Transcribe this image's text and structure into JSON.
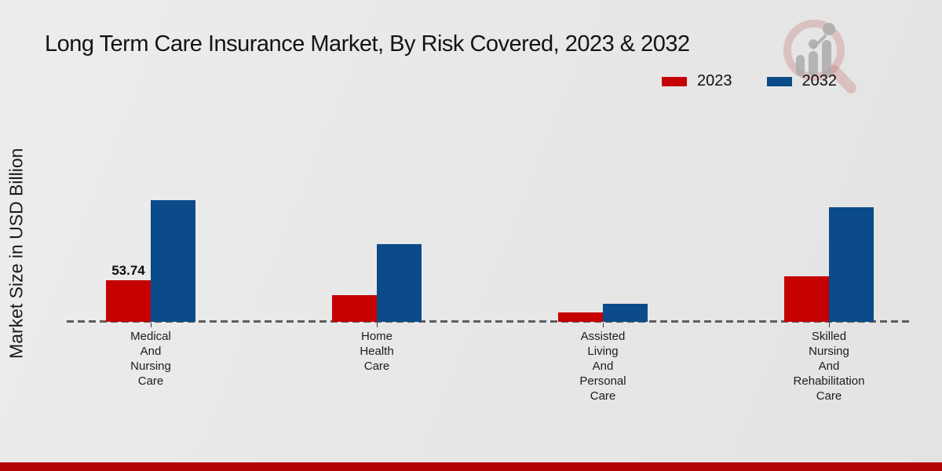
{
  "chart_data": {
    "type": "bar",
    "title": "Long Term Care Insurance Market, By Risk Covered, 2023 & 2032",
    "xlabel": "",
    "ylabel": "Market Size in USD Billion",
    "categories": [
      "Medical\nAnd\nNursing\nCare",
      "Home\nHealth\nCare",
      "Assisted\nLiving\nAnd\nPersonal\nCare",
      "Skilled\nNursing\nAnd\nRehabilitation\nCare"
    ],
    "series": [
      {
        "name": "2023",
        "color": "#c50101",
        "values": [
          53.74,
          34.5,
          12,
          59
        ],
        "point_labels": [
          "53.74",
          "",
          "",
          ""
        ]
      },
      {
        "name": "2032",
        "color": "#0b4b8a",
        "values": [
          157,
          100,
          23.5,
          148
        ],
        "point_labels": [
          "",
          "",
          "",
          ""
        ]
      }
    ],
    "ylim": [
      0,
      170
    ],
    "grid": false,
    "axis_style": "dashed-baseline-only",
    "legend_position": "top-right"
  },
  "branding": {
    "bottom_bar_color": "#b30404",
    "logo": "magnifier-growth-chart-watermark"
  }
}
